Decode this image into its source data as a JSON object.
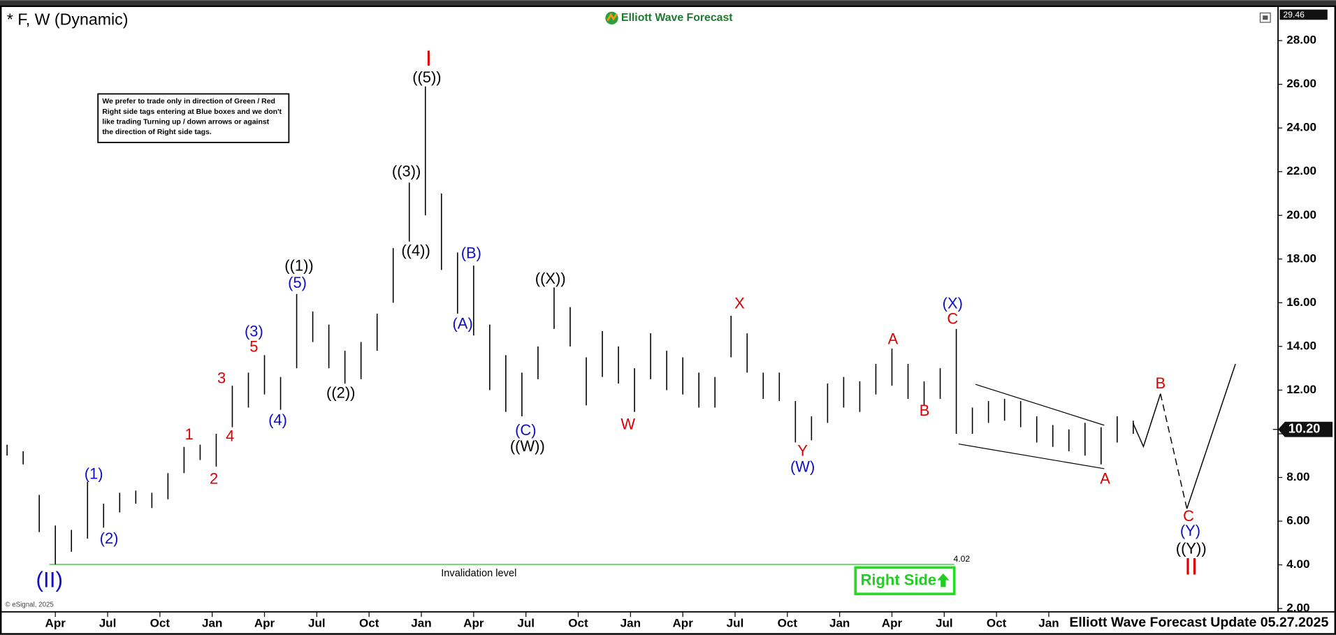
{
  "chart_data": {
    "type": "range_bar",
    "title": "* F, W (Dynamic)",
    "brand": "Elliott Wave Forecast",
    "note": [
      "We prefer to trade only in direction of Green / Red",
      "Right side tags entering at Blue boxes and we don't",
      "like trading Turning up / down arrows or against",
      "the direction of Right side tags."
    ],
    "copyright": "© eSignal, 2025",
    "footer": "Elliott Wave Forecast Update 05.27.2025",
    "right_side": "Right Side",
    "color": "#000000",
    "x": [
      -12,
      -8,
      -4,
      0,
      4,
      8,
      12,
      16,
      20,
      24,
      28,
      32,
      36,
      40,
      44,
      48,
      52,
      56,
      60,
      64,
      68,
      72,
      76,
      80,
      84,
      88,
      92,
      96,
      100,
      104,
      108,
      112,
      116,
      120,
      124,
      128,
      132,
      136,
      140,
      144,
      148,
      152,
      156,
      160,
      164,
      168,
      172,
      176,
      180,
      184,
      188,
      192,
      196,
      200,
      204,
      208,
      212,
      216,
      220,
      224,
      228,
      232,
      236,
      240,
      244,
      248,
      252,
      256,
      260,
      264,
      268
    ],
    "high": [
      9.5,
      9.2,
      7.2,
      5.8,
      5.6,
      7.8,
      6.8,
      7.3,
      7.4,
      7.3,
      8.2,
      9.4,
      9.5,
      10.0,
      12.2,
      12.8,
      13.6,
      12.6,
      16.4,
      15.6,
      15.0,
      13.8,
      14.2,
      15.5,
      18.5,
      21.5,
      25.9,
      21.0,
      18.3,
      17.7,
      15.0,
      13.6,
      12.8,
      14.0,
      16.7,
      15.8,
      13.5,
      14.7,
      14.0,
      13.0,
      14.6,
      13.8,
      13.5,
      12.8,
      12.6,
      15.4,
      14.6,
      12.8,
      12.8,
      11.5,
      10.8,
      12.3,
      12.6,
      12.4,
      13.2,
      13.9,
      13.2,
      12.4,
      13.0,
      14.8,
      11.2,
      11.5,
      11.6,
      11.5,
      10.8,
      10.4,
      10.2,
      10.5,
      10.3,
      10.8,
      10.6
    ],
    "low": [
      9.0,
      8.6,
      5.5,
      4.02,
      4.6,
      5.2,
      5.7,
      6.4,
      6.8,
      6.6,
      7.0,
      8.2,
      8.8,
      8.5,
      10.3,
      11.2,
      11.8,
      11.1,
      13.0,
      14.2,
      13.0,
      12.3,
      12.5,
      13.8,
      16.0,
      18.8,
      20.0,
      17.5,
      15.5,
      14.5,
      12.0,
      11.0,
      10.8,
      12.5,
      14.8,
      14.0,
      11.3,
      12.6,
      12.3,
      11.0,
      12.5,
      12.0,
      11.8,
      11.2,
      11.2,
      13.5,
      12.8,
      11.6,
      11.5,
      9.6,
      9.7,
      10.5,
      11.2,
      11.0,
      11.8,
      12.2,
      11.6,
      11.3,
      11.6,
      10.0,
      10.0,
      10.5,
      10.6,
      10.3,
      9.6,
      9.4,
      9.2,
      9.0,
      8.6,
      9.6,
      10.0
    ],
    "xlim": [
      -12.7,
      304
    ],
    "xticks": [
      {
        "value": 0,
        "label": "Apr"
      },
      {
        "value": 13,
        "label": "Jul"
      },
      {
        "value": 26,
        "label": "Oct"
      },
      {
        "value": 39,
        "label": "Jan"
      },
      {
        "value": 52,
        "label": "Apr"
      },
      {
        "value": 65,
        "label": "Jul"
      },
      {
        "value": 78,
        "label": "Oct"
      },
      {
        "value": 91,
        "label": "Jan"
      },
      {
        "value": 104,
        "label": "Apr"
      },
      {
        "value": 117,
        "label": "Jul"
      },
      {
        "value": 130,
        "label": "Oct"
      },
      {
        "value": 143,
        "label": "Jan"
      },
      {
        "value": 156,
        "label": "Apr"
      },
      {
        "value": 169,
        "label": "Jul"
      },
      {
        "value": 182,
        "label": "Oct"
      },
      {
        "value": 195,
        "label": "Jan"
      },
      {
        "value": 208,
        "label": "Apr"
      },
      {
        "value": 221,
        "label": "Jul"
      },
      {
        "value": 234,
        "label": "Oct"
      },
      {
        "value": 247,
        "label": "Jan"
      }
    ],
    "ylim": [
      1.85,
      29.46
    ],
    "yticks": [
      {
        "value": 2,
        "label": "2.00"
      },
      {
        "value": 4,
        "label": "4.00"
      },
      {
        "value": 6,
        "label": "6.00"
      },
      {
        "value": 8,
        "label": "8.00"
      },
      {
        "value": 10,
        "label": "10.00"
      },
      {
        "value": 12,
        "label": "12.00"
      },
      {
        "value": 14,
        "label": "14.00"
      },
      {
        "value": 16,
        "label": "16.00"
      },
      {
        "value": 18,
        "label": "18.00"
      },
      {
        "value": 20,
        "label": "20.00"
      },
      {
        "value": 22,
        "label": "22.00"
      },
      {
        "value": 24,
        "label": "24.00"
      },
      {
        "value": 26,
        "label": "26.00"
      },
      {
        "value": 28,
        "label": "28.00"
      }
    ],
    "last_price": {
      "value": 10.2,
      "label": "10.20"
    },
    "invalidation": {
      "value": 4.02,
      "label": "Invalidation level",
      "color": "#33cc33"
    },
    "annotations": [
      {
        "text": "I",
        "color": "#dd0000"
      },
      {
        "text": "((5))",
        "color": "#000000"
      },
      {
        "text": "((3))",
        "color": "#000000"
      },
      {
        "text": "((4))",
        "color": "#000000"
      },
      {
        "text": "((1))",
        "color": "#000000"
      },
      {
        "text": "(5)",
        "color": "#1010c0"
      },
      {
        "text": "(3)",
        "color": "#1010c0"
      },
      {
        "text": "5",
        "color": "#dd0000"
      },
      {
        "text": "3",
        "color": "#dd0000"
      },
      {
        "text": "4",
        "color": "#dd0000"
      },
      {
        "text": "(4)",
        "color": "#1010c0"
      },
      {
        "text": "((2))",
        "color": "#000000"
      },
      {
        "text": "1",
        "color": "#dd0000"
      },
      {
        "text": "2",
        "color": "#dd0000"
      },
      {
        "text": "(1)",
        "color": "#1010c0"
      },
      {
        "text": "(2)",
        "color": "#1010c0"
      },
      {
        "text": "(II)",
        "color": "#1010c0"
      },
      {
        "text": "(B)",
        "color": "#1010c0"
      },
      {
        "text": "(A)",
        "color": "#1010c0"
      },
      {
        "text": "((X))",
        "color": "#000000"
      },
      {
        "text": "(C)",
        "color": "#1010c0"
      },
      {
        "text": "((W))",
        "color": "#000000"
      },
      {
        "text": "W",
        "color": "#dd0000"
      },
      {
        "text": "X",
        "color": "#dd0000"
      },
      {
        "text": "Y",
        "color": "#dd0000"
      },
      {
        "text": "(W)",
        "color": "#1010c0"
      },
      {
        "text": "A",
        "color": "#dd0000"
      },
      {
        "text": "B",
        "color": "#dd0000"
      },
      {
        "text": "(X)",
        "color": "#1010c0"
      },
      {
        "text": "C",
        "color": "#dd0000"
      },
      {
        "text": "A",
        "color": "#dd0000"
      },
      {
        "text": "B",
        "color": "#dd0000"
      },
      {
        "text": "C",
        "color": "#dd0000"
      },
      {
        "text": "(Y)",
        "color": "#1010c0"
      },
      {
        "text": "((Y))",
        "color": "#000000"
      },
      {
        "text": "II",
        "color": "#dd0000"
      }
    ]
  }
}
